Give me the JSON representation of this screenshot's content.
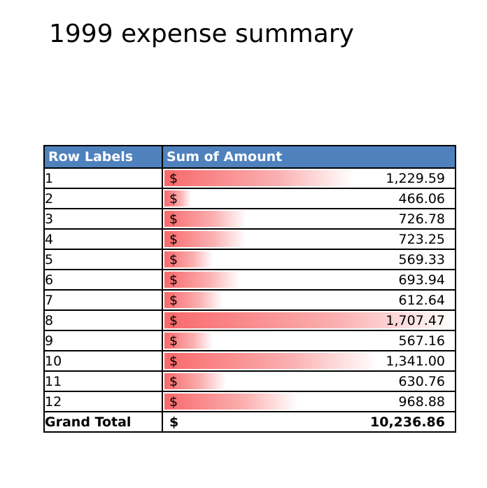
{
  "title": "1999 expense summary",
  "colors": {
    "header_bg": "#4f81bd",
    "bar_strong": "#f8696b",
    "bar_fade": "#ffffff"
  },
  "table": {
    "headers": [
      "Row Labels",
      "Sum of Amount"
    ],
    "currency_symbol": "$",
    "rows": [
      {
        "label": "1",
        "value": 1229.59,
        "display": "1,229.59"
      },
      {
        "label": "2",
        "value": 466.06,
        "display": "466.06"
      },
      {
        "label": "3",
        "value": 726.78,
        "display": "726.78"
      },
      {
        "label": "4",
        "value": 723.25,
        "display": "723.25"
      },
      {
        "label": "5",
        "value": 569.33,
        "display": "569.33"
      },
      {
        "label": "6",
        "value": 693.94,
        "display": "693.94"
      },
      {
        "label": "7",
        "value": 612.64,
        "display": "612.64"
      },
      {
        "label": "8",
        "value": 1707.47,
        "display": "1,707.47"
      },
      {
        "label": "9",
        "value": 567.16,
        "display": "567.16"
      },
      {
        "label": "10",
        "value": 1341.0,
        "display": "1,341.00"
      },
      {
        "label": "11",
        "value": 630.76,
        "display": "630.76"
      },
      {
        "label": "12",
        "value": 968.88,
        "display": "968.88"
      }
    ],
    "grand_total": {
      "label": "Grand Total",
      "value": 10236.86,
      "display": "10,236.86"
    }
  }
}
